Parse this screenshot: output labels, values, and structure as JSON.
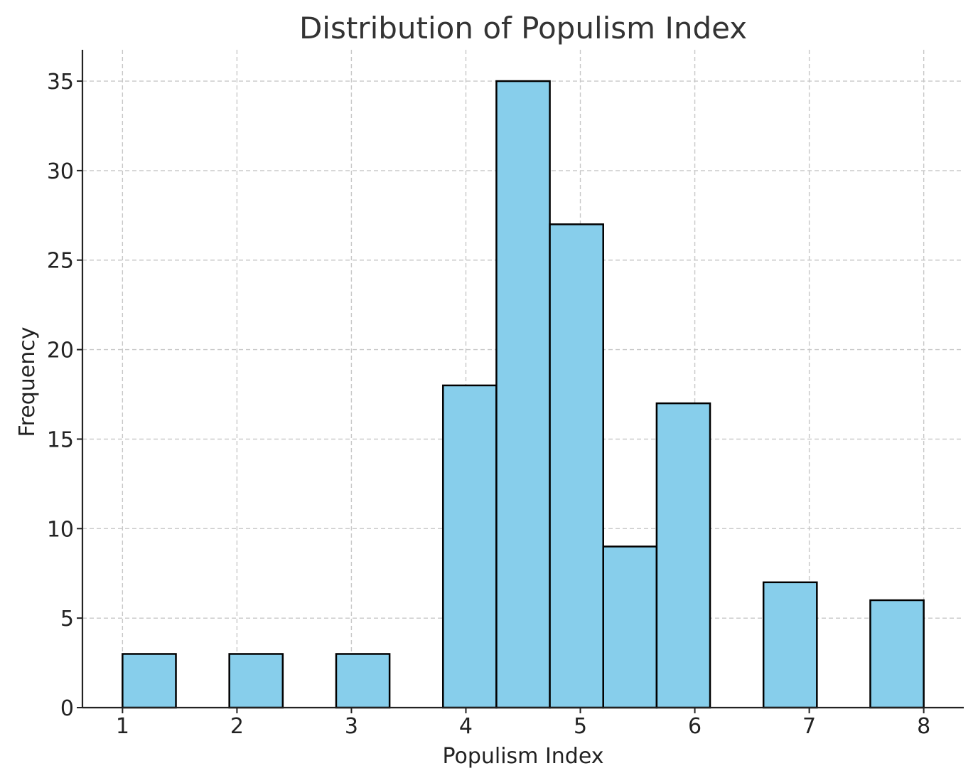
{
  "chart_data": {
    "type": "bar",
    "title": "Distribution of Populism Index",
    "xlabel": "Populism Index",
    "ylabel": "Frequency",
    "xlim": [
      0.65,
      8.35
    ],
    "ylim": [
      0,
      36.75
    ],
    "x_ticks": [
      1,
      2,
      3,
      4,
      5,
      6,
      7,
      8
    ],
    "y_ticks": [
      0,
      5,
      10,
      15,
      20,
      25,
      30,
      35
    ],
    "grid": true,
    "bar_color": "#87CEEB",
    "edge_color": "#000000",
    "bins": [
      {
        "start": 1.0,
        "end": 1.4667,
        "count": 3
      },
      {
        "start": 1.4667,
        "end": 1.9333,
        "count": 0
      },
      {
        "start": 1.9333,
        "end": 2.4,
        "count": 3
      },
      {
        "start": 2.4,
        "end": 2.8667,
        "count": 0
      },
      {
        "start": 2.8667,
        "end": 3.3333,
        "count": 3
      },
      {
        "start": 3.3333,
        "end": 3.8,
        "count": 0
      },
      {
        "start": 3.8,
        "end": 4.2667,
        "count": 18
      },
      {
        "start": 4.2667,
        "end": 4.7333,
        "count": 35
      },
      {
        "start": 4.7333,
        "end": 5.2,
        "count": 27
      },
      {
        "start": 5.2,
        "end": 5.6667,
        "count": 9
      },
      {
        "start": 5.6667,
        "end": 6.1333,
        "count": 17
      },
      {
        "start": 6.1333,
        "end": 6.6,
        "count": 0
      },
      {
        "start": 6.6,
        "end": 7.0667,
        "count": 7
      },
      {
        "start": 7.0667,
        "end": 7.5333,
        "count": 0
      },
      {
        "start": 7.5333,
        "end": 8.0,
        "count": 6
      }
    ]
  }
}
